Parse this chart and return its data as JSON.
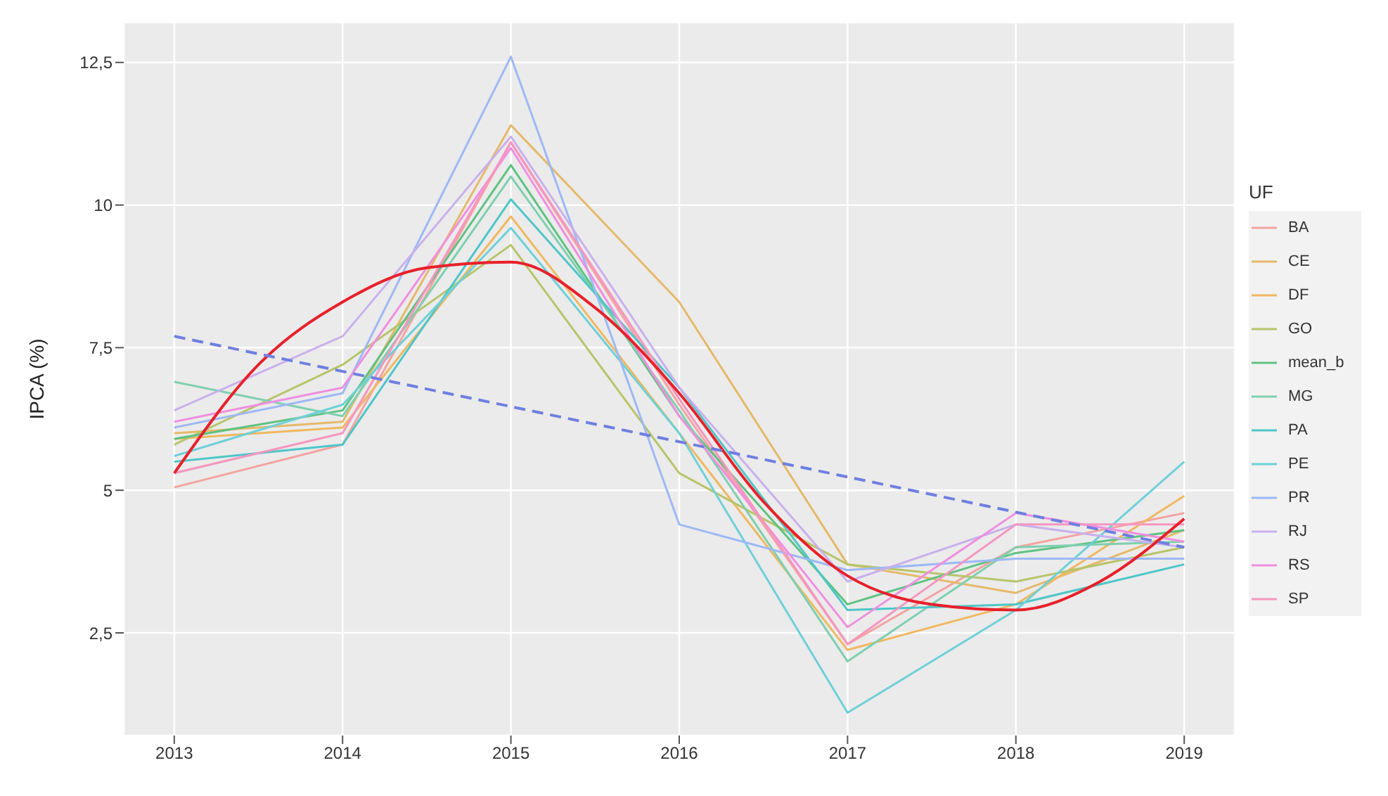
{
  "chart_data": {
    "type": "line",
    "ylabel": "IPCA (%)",
    "legend_title": "UF",
    "legend": "right",
    "grid": true,
    "marker": "none",
    "x": [
      2013,
      2014,
      2015,
      2016,
      2017,
      2018,
      2019
    ],
    "xlim": [
      2012.7,
      2019.3
    ],
    "xticks": [
      2013,
      2014,
      2015,
      2016,
      2017,
      2018,
      2019
    ],
    "ylim": [
      0.7,
      13.2
    ],
    "yticks": [
      {
        "value": 2.5,
        "label": "2,5"
      },
      5,
      {
        "value": 7.5,
        "label": "7,5"
      },
      10,
      {
        "value": 12.5,
        "label": "12,5"
      }
    ],
    "series": [
      {
        "name": "BA",
        "color": "#f4a3a0",
        "values": [
          5.05,
          5.8,
          11.1,
          6.5,
          2.3,
          4.0,
          4.6
        ]
      },
      {
        "name": "CE",
        "color": "#e5b96a",
        "values": [
          6.0,
          6.2,
          11.4,
          8.3,
          3.7,
          3.2,
          4.3
        ]
      },
      {
        "name": "DF",
        "color": "#f0b860",
        "values": [
          5.9,
          6.1,
          9.8,
          6.0,
          2.2,
          3.0,
          4.9
        ]
      },
      {
        "name": "GO",
        "color": "#b8c46a",
        "values": [
          5.8,
          7.2,
          9.3,
          5.3,
          3.7,
          3.4,
          4.0
        ]
      },
      {
        "name": "mean_b",
        "color": "#5fc282",
        "values": [
          5.9,
          6.4,
          10.7,
          6.3,
          3.0,
          3.9,
          4.3
        ]
      },
      {
        "name": "MG",
        "color": "#7fcfb0",
        "values": [
          6.9,
          6.3,
          10.5,
          6.4,
          2.0,
          4.0,
          4.1
        ]
      },
      {
        "name": "PA",
        "color": "#4fc6c8",
        "values": [
          5.5,
          5.8,
          10.1,
          6.8,
          2.9,
          3.0,
          3.7
        ]
      },
      {
        "name": "PE",
        "color": "#6fd0d8",
        "values": [
          5.6,
          6.5,
          9.6,
          6.0,
          1.1,
          2.9,
          5.5
        ]
      },
      {
        "name": "PR",
        "color": "#9db8f5",
        "values": [
          6.1,
          6.7,
          12.6,
          4.4,
          3.6,
          3.8,
          3.8
        ]
      },
      {
        "name": "RJ",
        "color": "#c9b0ec",
        "values": [
          6.4,
          7.7,
          11.2,
          6.8,
          3.4,
          4.4,
          4.0
        ]
      },
      {
        "name": "RS",
        "color": "#f08ee0",
        "values": [
          6.2,
          6.8,
          11.0,
          6.3,
          2.6,
          4.6,
          4.1
        ]
      },
      {
        "name": "SP",
        "color": "#f596bf",
        "values": [
          5.3,
          6.0,
          11.1,
          6.6,
          2.3,
          4.4,
          4.4
        ]
      },
      {
        "color": "#e8202a",
        "x": [
          2013,
          2013.5,
          2014,
          2014.5,
          2015,
          2015.5,
          2016,
          2016.5,
          2017,
          2017.5,
          2018,
          2018.5,
          2019
        ],
        "values": [
          5.3,
          7.2,
          8.3,
          8.9,
          9.0,
          8.2,
          6.7,
          4.8,
          3.5,
          3.0,
          2.9,
          3.4,
          4.5
        ]
      },
      {
        "color": "#6f7fe0",
        "line_style": "dashed",
        "x": [
          2013,
          2019
        ],
        "values": [
          7.7,
          4.0
        ]
      }
    ]
  }
}
